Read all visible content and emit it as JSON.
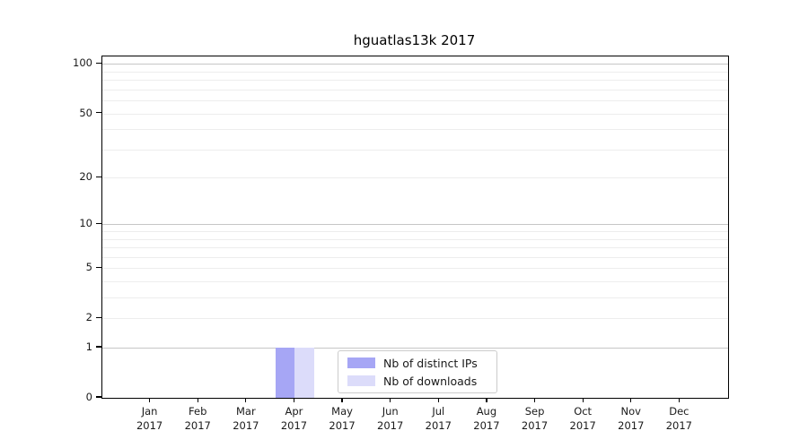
{
  "title": "hguatlas13k 2017",
  "colors": {
    "distinct_ips_bar": "#a6a6f5",
    "downloads_bar": "#dcdcfa",
    "grid_major": "#c6c6c6",
    "grid_minor": "#ededed",
    "axis_spine": "#000000",
    "tick_label": "#1a1a1a",
    "legend_border": "#cccccc",
    "background": "#ffffff"
  },
  "legend": {
    "items": [
      {
        "label": "Nb of distinct IPs",
        "color": "#a6a6f5"
      },
      {
        "label": "Nb of downloads",
        "color": "#dcdcfa"
      }
    ],
    "position": "lower center"
  },
  "chart_data": {
    "type": "bar",
    "title": "hguatlas13k 2017",
    "xlabel": "",
    "ylabel": "",
    "categories": [
      "Jan 2017",
      "Feb 2017",
      "Mar 2017",
      "Apr 2017",
      "May 2017",
      "Jun 2017",
      "Jul 2017",
      "Aug 2017",
      "Sep 2017",
      "Oct 2017",
      "Nov 2017",
      "Dec 2017"
    ],
    "series": [
      {
        "name": "Nb of distinct IPs",
        "color": "#a6a6f5",
        "values": [
          0,
          0,
          0,
          1,
          0,
          0,
          0,
          0,
          0,
          0,
          0,
          0
        ]
      },
      {
        "name": "Nb of downloads",
        "color": "#dcdcfa",
        "values": [
          0,
          0,
          0,
          1,
          0,
          0,
          0,
          0,
          0,
          0,
          0,
          0
        ]
      }
    ],
    "yscale": "log1p",
    "ylim": [
      0,
      111
    ],
    "ytick_values": [
      0,
      1,
      2,
      5,
      10,
      20,
      50,
      100
    ],
    "ytick_labels": [
      "0",
      "1",
      "2",
      "5",
      "10",
      "20",
      "50",
      "100"
    ],
    "major_gridline_values": [
      1,
      10,
      100
    ],
    "minor_gridline_values": [
      2,
      3,
      4,
      5,
      6,
      7,
      8,
      9,
      20,
      30,
      40,
      50,
      60,
      70,
      80,
      90
    ],
    "grid": "on",
    "legend_position": "lower center"
  }
}
